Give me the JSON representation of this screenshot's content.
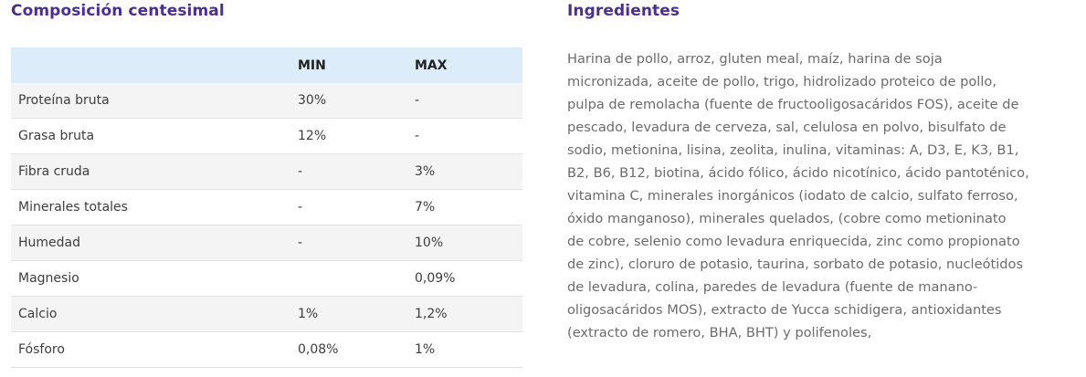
{
  "composition": {
    "title": "Composición centesimal",
    "columns": [
      "",
      "MIN",
      "MAX"
    ],
    "rows": [
      {
        "name": "Proteína bruta",
        "min": "30%",
        "max": "-"
      },
      {
        "name": "Grasa bruta",
        "min": "12%",
        "max": "-"
      },
      {
        "name": "Fibra cruda",
        "min": "-",
        "max": "3%"
      },
      {
        "name": "Minerales totales",
        "min": "-",
        "max": "7%"
      },
      {
        "name": "Humedad",
        "min": "-",
        "max": "10%"
      },
      {
        "name": "Magnesio",
        "min": "",
        "max": "0,09%"
      },
      {
        "name": "Calcio",
        "min": "1%",
        "max": "1,2%"
      },
      {
        "name": "Fósforo",
        "min": "0,08%",
        "max": "1%"
      }
    ]
  },
  "ingredients": {
    "title": "Ingredientes",
    "lines": [
      "Harina de pollo, arroz, gluten meal, maíz, harina de soja",
      "micronizada, aceite de pollo, trigo, hidrolizado proteico de pollo,",
      "pulpa de remolacha (fuente de fructooligosacáridos FOS), aceite de",
      "pescado, levadura de cerveza, sal, celulosa en polvo, bisulfato de",
      "sodio, metionina, lisina, zeolita, inulina, vitaminas: A, D3, E, K3, B1,",
      "B2, B6, B12, biotina, ácido fólico, ácido nicotínico, ácido pantoténico,",
      "vitamina C, minerales inorgánicos (iodato de calcio, sulfato ferroso,",
      "óxido manganoso), minerales quelados, (cobre como metioninato",
      "de cobre, selenio como levadura enriquecida, zinc como propionato",
      "de zinc), cloruro de potasio, taurina, sorbato de potasio, nucleótidos",
      "de levadura, colina, paredes de levadura (fuente de manano-",
      "oligosacáridos MOS), extracto de Yucca schidigera, antioxidantes",
      "(extracto de romero, BHA, BHT) y polifenoles,"
    ]
  }
}
